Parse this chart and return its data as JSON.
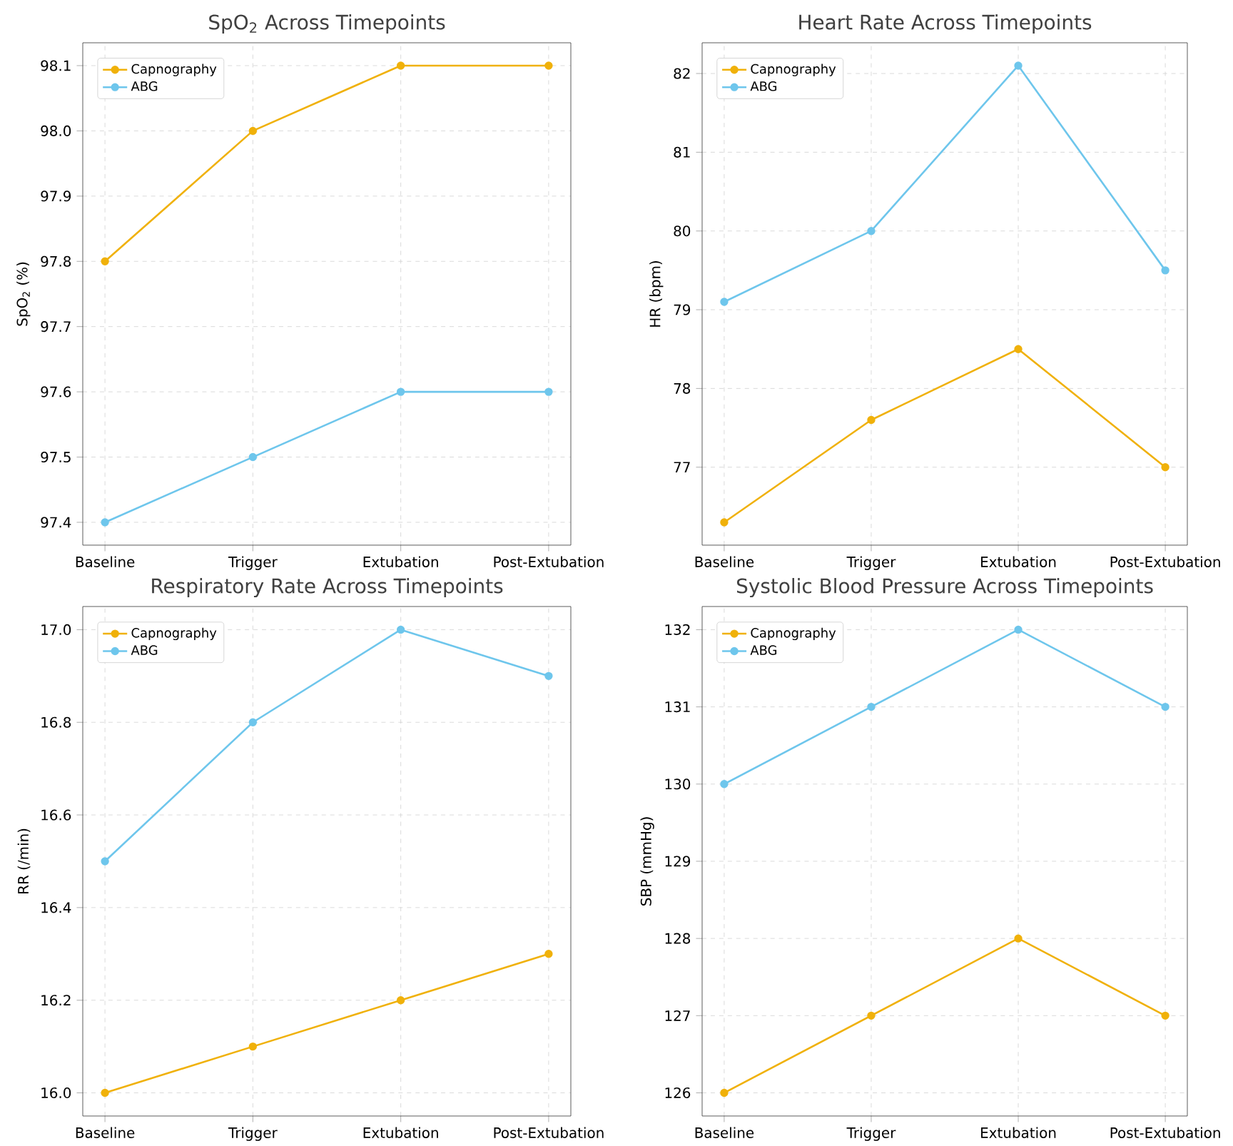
{
  "chart_data": [
    {
      "type": "line",
      "title": "SpO$_{2}$ Across Timepoints",
      "ylabel": "SpO$_{2}$ (%)",
      "categories": [
        "Baseline",
        "Trigger",
        "Extubation",
        "Post-Extubation"
      ],
      "series": [
        {
          "name": "Capnography",
          "color": "#f0b10a",
          "values": [
            97.8,
            98.0,
            98.1,
            98.1
          ]
        },
        {
          "name": "ABG",
          "color": "#6ec6ec",
          "values": [
            97.4,
            97.5,
            97.6,
            97.6
          ]
        }
      ],
      "ylim": [
        97.365,
        98.135
      ],
      "yticks": [
        97.4,
        97.5,
        97.6,
        97.7,
        97.8,
        97.9,
        {
          "value": 98.0,
          "label": "98.0"
        },
        98.1
      ],
      "grid": true,
      "legend": "top left",
      "marker": "circle",
      "line_style": "solid"
    },
    {
      "type": "line",
      "title": "Heart Rate Across Timepoints",
      "ylabel": "HR (bpm)",
      "categories": [
        "Baseline",
        "Trigger",
        "Extubation",
        "Post-Extubation"
      ],
      "series": [
        {
          "name": "Capnography",
          "color": "#f0b10a",
          "values": [
            76.3,
            77.6,
            78.5,
            77.0
          ]
        },
        {
          "name": "ABG",
          "color": "#6ec6ec",
          "values": [
            79.1,
            80.0,
            82.1,
            79.5
          ]
        }
      ],
      "ylim": [
        76.01,
        82.39
      ],
      "yticks": [
        77,
        78,
        79,
        80,
        81,
        82
      ],
      "grid": true,
      "legend": "top left",
      "marker": "circle",
      "line_style": "solid"
    },
    {
      "type": "line",
      "title": "Respiratory Rate Across Timepoints",
      "ylabel": "RR (/min)",
      "categories": [
        "Baseline",
        "Trigger",
        "Extubation",
        "Post-Extubation"
      ],
      "series": [
        {
          "name": "Capnography",
          "color": "#f0b10a",
          "values": [
            16.0,
            16.1,
            16.2,
            16.3
          ]
        },
        {
          "name": "ABG",
          "color": "#6ec6ec",
          "values": [
            16.5,
            16.8,
            17.0,
            16.9
          ]
        }
      ],
      "ylim": [
        15.95,
        17.05
      ],
      "yticks": [
        {
          "value": 16.0,
          "label": "16.0"
        },
        16.2,
        16.4,
        16.6,
        16.8,
        {
          "value": 17.0,
          "label": "17.0"
        }
      ],
      "grid": true,
      "legend": "top left",
      "marker": "circle",
      "line_style": "solid"
    },
    {
      "type": "line",
      "title": "Systolic Blood Pressure Across Timepoints",
      "ylabel": "SBP (mmHg)",
      "categories": [
        "Baseline",
        "Trigger",
        "Extubation",
        "Post-Extubation"
      ],
      "series": [
        {
          "name": "Capnography",
          "color": "#f0b10a",
          "values": [
            126,
            127,
            128,
            127
          ]
        },
        {
          "name": "ABG",
          "color": "#6ec6ec",
          "values": [
            130,
            131,
            132,
            131
          ]
        }
      ],
      "ylim": [
        125.7,
        132.3
      ],
      "yticks": [
        126,
        127,
        128,
        129,
        130,
        131,
        132
      ],
      "grid": true,
      "legend": "top left",
      "marker": "circle",
      "line_style": "solid"
    }
  ]
}
